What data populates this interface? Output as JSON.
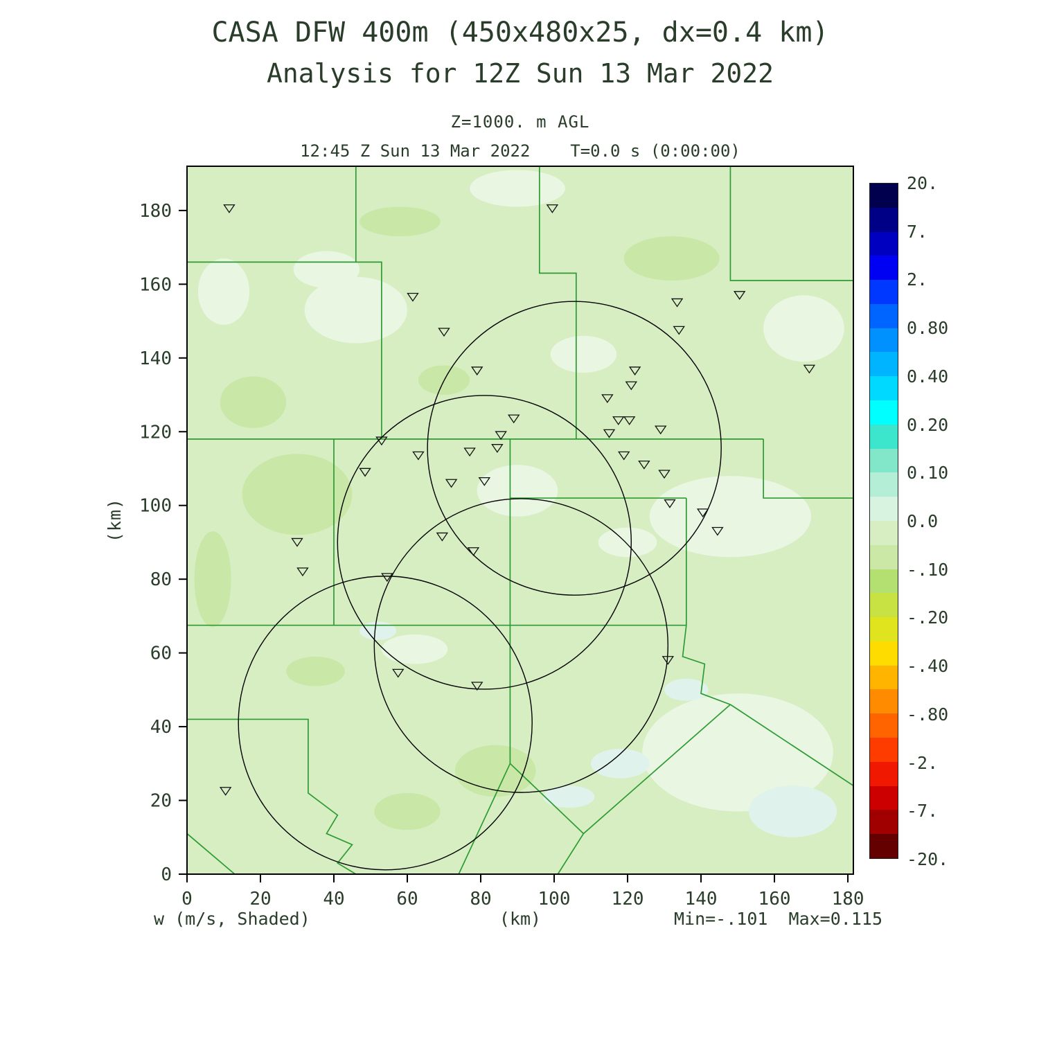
{
  "chart_data": {
    "type": "heatmap",
    "subtype": "shaded-contour-map-with-radar-rings",
    "title": "CASA DFW 400m (450x480x25, dx=0.4 km)",
    "subtitle": "Analysis for 12Z Sun 13 Mar 2022",
    "level_label": "Z=1000. m AGL",
    "time_label": "12:45 Z Sun 13 Mar 2022    T=0.0 s (0:00:00)",
    "footer_left": "w (m/s, Shaded)",
    "footer_center": "(km)",
    "footer_right": "Min=-.101  Max=0.115",
    "shaded_variable": "w (m/s)",
    "min": -0.101,
    "max": 0.115,
    "xlabel": "(km)",
    "ylabel": "(km)",
    "xlim": [
      0,
      181.5
    ],
    "ylim": [
      0,
      192
    ],
    "xticks": [
      0,
      20,
      40,
      60,
      80,
      100,
      120,
      140,
      160,
      180
    ],
    "yticks": [
      0,
      20,
      40,
      60,
      80,
      100,
      120,
      140,
      160,
      180
    ],
    "grid": false,
    "background_color": "#d7eec3",
    "county_line_color": "#2d9b33",
    "circle_color": "#000000",
    "marker_color": "#111111",
    "radar_circles": [
      {
        "cx": 105.5,
        "cy": 115.5,
        "r": 40
      },
      {
        "cx": 81,
        "cy": 90,
        "r": 40
      },
      {
        "cx": 91,
        "cy": 62,
        "r": 40
      },
      {
        "cx": 54,
        "cy": 41,
        "r": 40
      }
    ],
    "stations": [
      [
        11.5,
        180.5
      ],
      [
        99.5,
        180.5
      ],
      [
        61.5,
        156.5
      ],
      [
        150.5,
        157
      ],
      [
        133.5,
        155
      ],
      [
        70,
        147
      ],
      [
        134,
        147.5
      ],
      [
        79,
        136.5
      ],
      [
        122,
        136.5
      ],
      [
        169.5,
        137
      ],
      [
        121,
        132.5
      ],
      [
        114.5,
        129
      ],
      [
        89,
        123.5
      ],
      [
        117.5,
        123
      ],
      [
        120.5,
        123
      ],
      [
        115,
        119.5
      ],
      [
        129,
        120.5
      ],
      [
        85.5,
        119
      ],
      [
        84.5,
        115.5
      ],
      [
        53,
        117.5
      ],
      [
        63,
        113.5
      ],
      [
        77,
        114.5
      ],
      [
        119,
        113.5
      ],
      [
        124.5,
        111
      ],
      [
        48.5,
        109
      ],
      [
        130,
        108.5
      ],
      [
        72,
        106
      ],
      [
        81,
        106.5
      ],
      [
        131.5,
        100.5
      ],
      [
        140.5,
        98
      ],
      [
        144.5,
        93
      ],
      [
        30,
        90
      ],
      [
        69.5,
        91.5
      ],
      [
        78,
        87.5
      ],
      [
        31.5,
        82
      ],
      [
        54.5,
        80.5
      ],
      [
        131,
        58
      ],
      [
        57.5,
        54.5
      ],
      [
        79,
        51
      ],
      [
        10.5,
        22.5
      ]
    ],
    "county_lines": [
      [
        [
          0,
          166
        ],
        [
          46,
          166
        ],
        [
          46,
          192
        ]
      ],
      [
        [
          46,
          166
        ],
        [
          53,
          166
        ],
        [
          53,
          118
        ]
      ],
      [
        [
          96,
          192
        ],
        [
          96,
          163
        ],
        [
          106,
          163
        ],
        [
          106,
          118
        ]
      ],
      [
        [
          148,
          192
        ],
        [
          148,
          161
        ],
        [
          181.5,
          161
        ]
      ],
      [
        [
          0,
          118
        ],
        [
          157,
          118
        ]
      ],
      [
        [
          157,
          118
        ],
        [
          157,
          102
        ],
        [
          181.5,
          102
        ]
      ],
      [
        [
          40,
          118
        ],
        [
          40,
          67.5
        ]
      ],
      [
        [
          0,
          67.5
        ],
        [
          136,
          67.5
        ]
      ],
      [
        [
          88,
          118
        ],
        [
          88,
          30
        ]
      ],
      [
        [
          88,
          102
        ],
        [
          136,
          102
        ]
      ],
      [
        [
          136,
          102
        ],
        [
          136,
          67.5
        ]
      ],
      [
        [
          136,
          67.5
        ],
        [
          135,
          59
        ],
        [
          141,
          57
        ],
        [
          140,
          49
        ],
        [
          148,
          46
        ]
      ],
      [
        [
          148,
          46
        ],
        [
          181.5,
          24
        ]
      ],
      [
        [
          148,
          46
        ],
        [
          108,
          11
        ],
        [
          101,
          0
        ]
      ],
      [
        [
          88,
          30
        ],
        [
          108,
          11
        ]
      ],
      [
        [
          88,
          30
        ],
        [
          74,
          0
        ]
      ],
      [
        [
          0,
          42
        ],
        [
          33,
          42
        ],
        [
          33,
          22
        ],
        [
          41,
          16
        ],
        [
          38,
          11
        ],
        [
          45,
          8
        ],
        [
          41,
          3
        ],
        [
          46,
          0
        ]
      ],
      [
        [
          0,
          11
        ],
        [
          13,
          0
        ]
      ]
    ],
    "shade_patches": [
      [
        46,
        153,
        14,
        9,
        "#e8f6e2"
      ],
      [
        38,
        164,
        9,
        5,
        "#e8f6e2"
      ],
      [
        90,
        186,
        13,
        5,
        "#e8f6e2"
      ],
      [
        10,
        158,
        7,
        9,
        "#e8f6e2"
      ],
      [
        132,
        167,
        13,
        6,
        "#c9e7a6"
      ],
      [
        58,
        177,
        11,
        4,
        "#c9e7a6"
      ],
      [
        148,
        97,
        22,
        11,
        "#e8f6e2"
      ],
      [
        168,
        148,
        11,
        9,
        "#e8f6e2"
      ],
      [
        90,
        104,
        11,
        7,
        "#e8f6e2"
      ],
      [
        120,
        90,
        8,
        4,
        "#e8f6e2"
      ],
      [
        108,
        141,
        9,
        5,
        "#e8f6e2"
      ],
      [
        70,
        134,
        7,
        4,
        "#c9e7a6"
      ],
      [
        30,
        103,
        15,
        11,
        "#c9e7a6"
      ],
      [
        18,
        128,
        9,
        7,
        "#c9e7a6"
      ],
      [
        7,
        80,
        5,
        13,
        "#c9e7a6"
      ],
      [
        35,
        55,
        8,
        4,
        "#c9e7a6"
      ],
      [
        62,
        61,
        9,
        4,
        "#e8f6e2"
      ],
      [
        52,
        66,
        5,
        2.5,
        "#dff3ec"
      ],
      [
        150,
        33,
        26,
        16,
        "#e8f6e2"
      ],
      [
        165,
        17,
        12,
        7,
        "#dff3ec"
      ],
      [
        118,
        30,
        8,
        4,
        "#dff3ec"
      ],
      [
        136,
        50,
        6,
        3,
        "#dff3ec"
      ],
      [
        104,
        21,
        7,
        3,
        "#dff3ec"
      ],
      [
        84,
        28,
        11,
        7,
        "#c9e7a6"
      ],
      [
        60,
        17,
        9,
        5,
        "#c9e7a6"
      ]
    ],
    "colorbar": {
      "labels": [
        "20.",
        "7.",
        "2.",
        "0.80",
        "0.40",
        "0.20",
        "0.10",
        "0.0",
        "-.10",
        "-.20",
        "-.40",
        "-.80",
        "-2.",
        "-7.",
        "-20."
      ],
      "colors": [
        "#00004f",
        "#000087",
        "#0000c0",
        "#0000f2",
        "#0038ff",
        "#0064ff",
        "#0091ff",
        "#00b4ff",
        "#00d9ff",
        "#00ffff",
        "#3ce6cd",
        "#82e6c8",
        "#b4eed6",
        "#d8f4e0",
        "#d7eec3",
        "#cbe8a6",
        "#b4e072",
        "#c8e244",
        "#e0e41e",
        "#ffdc00",
        "#ffb400",
        "#ff8c00",
        "#ff6400",
        "#ff3c00",
        "#f01800",
        "#cd0000",
        "#a00000",
        "#640000"
      ]
    }
  }
}
